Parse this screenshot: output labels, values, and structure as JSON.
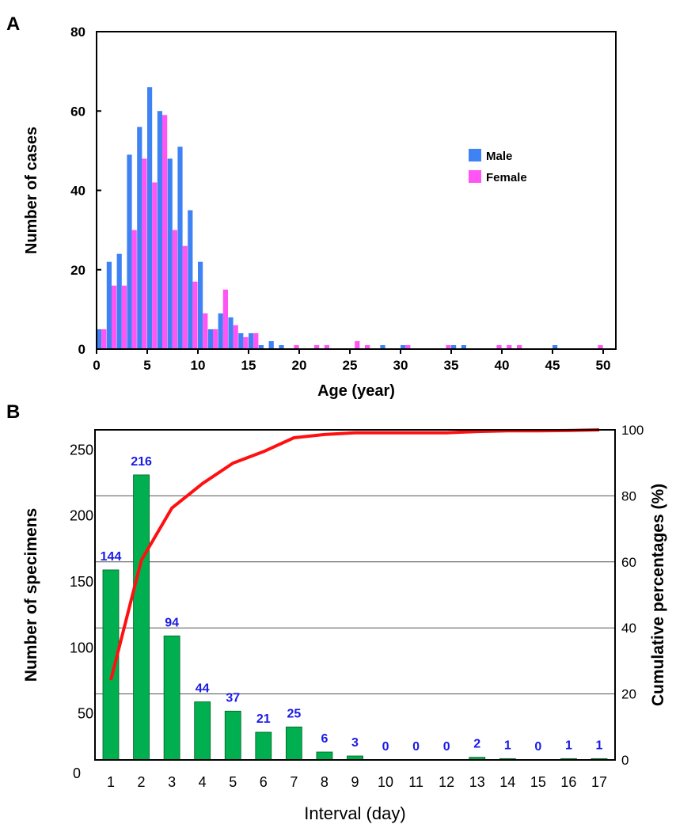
{
  "chart_data": [
    {
      "type": "bar",
      "panel_label": "A",
      "xlabel": "Age (year)",
      "ylabel": "Number of cases",
      "xlim": [
        0,
        51.25
      ],
      "ylim": [
        0,
        80
      ],
      "xticks": [
        0,
        5,
        10,
        15,
        20,
        25,
        30,
        35,
        40,
        45,
        50
      ],
      "yticks": [
        0,
        20,
        40,
        60,
        80
      ],
      "legend": "right",
      "grid": false,
      "colors": {
        "Male": "#3f82f4",
        "Female": "#ff55f5"
      },
      "series": [
        {
          "name": "Male",
          "points": [
            [
              0,
              5
            ],
            [
              1,
              22
            ],
            [
              2,
              24
            ],
            [
              3,
              49
            ],
            [
              4,
              56
            ],
            [
              5,
              66
            ],
            [
              6,
              60
            ],
            [
              7,
              48
            ],
            [
              8,
              51
            ],
            [
              9,
              35
            ],
            [
              10,
              22
            ],
            [
              11,
              5
            ],
            [
              12,
              9
            ],
            [
              13,
              8
            ],
            [
              14,
              4
            ],
            [
              15,
              4
            ],
            [
              16,
              1
            ],
            [
              17,
              2
            ],
            [
              18,
              1
            ],
            [
              28,
              1
            ],
            [
              30,
              1
            ],
            [
              35,
              1
            ],
            [
              36,
              1
            ],
            [
              45,
              1
            ]
          ]
        },
        {
          "name": "Female",
          "points": [
            [
              0,
              5
            ],
            [
              1,
              16
            ],
            [
              2,
              16
            ],
            [
              3,
              30
            ],
            [
              4,
              48
            ],
            [
              5,
              42
            ],
            [
              6,
              59
            ],
            [
              7,
              30
            ],
            [
              8,
              26
            ],
            [
              9,
              17
            ],
            [
              10,
              9
            ],
            [
              11,
              5
            ],
            [
              12,
              15
            ],
            [
              13,
              6
            ],
            [
              14,
              3
            ],
            [
              15,
              4
            ],
            [
              19,
              1
            ],
            [
              21,
              1
            ],
            [
              22,
              1
            ],
            [
              25,
              2
            ],
            [
              26,
              1
            ],
            [
              30,
              1
            ],
            [
              34,
              1
            ],
            [
              39,
              1
            ],
            [
              40,
              1
            ],
            [
              41,
              1
            ],
            [
              49,
              1
            ]
          ]
        }
      ]
    },
    {
      "type": "bar",
      "panel_label": "B",
      "xlabel": "Interval (day)",
      "ylabel": "Number of specimens",
      "ylabel_right": "Cumulative percentages (%)",
      "categories": [
        "1",
        "2",
        "3",
        "4",
        "5",
        "6",
        "7",
        "8",
        "9",
        "10",
        "11",
        "12",
        "13",
        "14",
        "15",
        "16",
        "17"
      ],
      "values": [
        144,
        216,
        94,
        44,
        37,
        21,
        25,
        6,
        3,
        0,
        0,
        0,
        2,
        1,
        0,
        1,
        1
      ],
      "data_labels": [
        "144",
        "216",
        "94",
        "44",
        "37",
        "21",
        "25",
        "6",
        "3",
        "0",
        "0",
        "0",
        "2",
        "1",
        "0",
        "1",
        "1"
      ],
      "cumulative_percent": [
        24.2,
        60.5,
        76.3,
        83.7,
        89.9,
        93.4,
        97.6,
        98.6,
        99.1,
        99.1,
        99.1,
        99.1,
        99.5,
        99.7,
        99.7,
        99.8,
        100
      ],
      "yticks_left": [
        0,
        50,
        100,
        150,
        200,
        250
      ],
      "yticks_right": [
        0,
        20,
        40,
        60,
        80,
        100
      ],
      "ylim_left": [
        0,
        250
      ],
      "ylim_right": [
        0,
        100
      ],
      "grid": true,
      "colors": {
        "bar": "#00b050",
        "line": "#ff1010",
        "label": "#1a1ae6"
      }
    }
  ]
}
